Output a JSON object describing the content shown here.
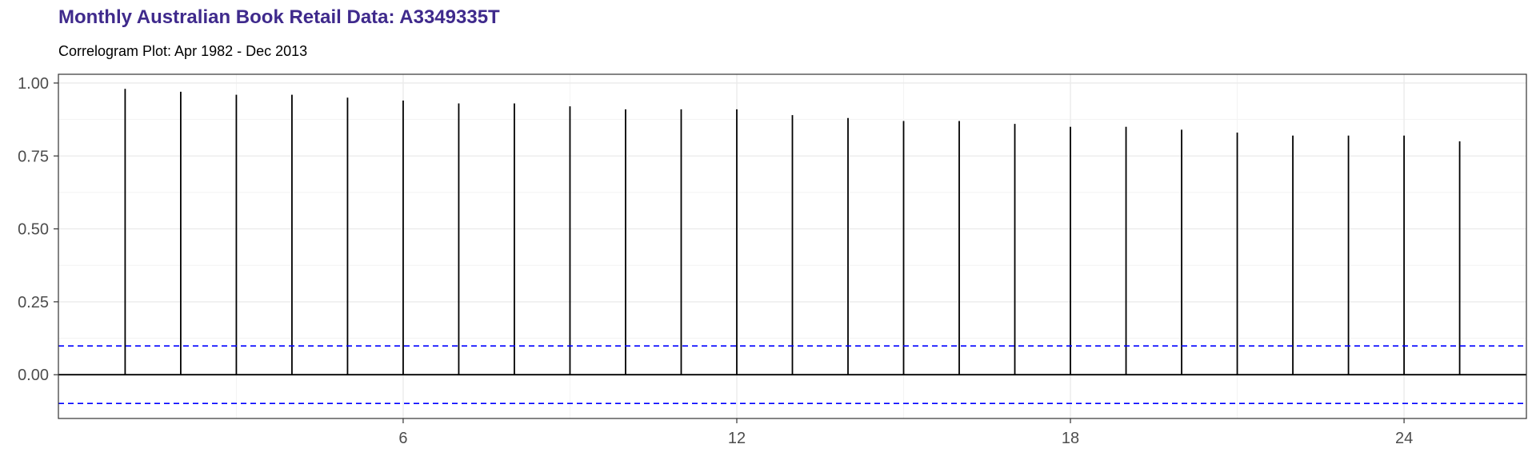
{
  "header": {
    "title": "Monthly Australian Book Retail Data: A3349335T",
    "subtitle": "Correlogram Plot: Apr 1982 - Dec 2013"
  },
  "chart_data": {
    "type": "bar",
    "title": "Monthly Australian Book Retail Data: A3349335T",
    "subtitle": "Correlogram Plot: Apr 1982 - Dec 2013",
    "xlabel": "",
    "ylabel": "",
    "x": [
      1,
      2,
      3,
      4,
      5,
      6,
      7,
      8,
      9,
      10,
      11,
      12,
      13,
      14,
      15,
      16,
      17,
      18,
      19,
      20,
      21,
      22,
      23,
      24,
      25
    ],
    "values": [
      0.98,
      0.97,
      0.96,
      0.96,
      0.95,
      0.94,
      0.93,
      0.93,
      0.92,
      0.91,
      0.91,
      0.91,
      0.89,
      0.88,
      0.87,
      0.87,
      0.86,
      0.85,
      0.85,
      0.84,
      0.83,
      0.82,
      0.82,
      0.82,
      0.8
    ],
    "xlim": [
      -0.2,
      26.2
    ],
    "ylim": [
      -0.15,
      1.03
    ],
    "x_ticks": [
      6,
      12,
      18,
      24
    ],
    "y_ticks": [
      0,
      0.25,
      0.5,
      0.75,
      1
    ],
    "x_tick_labels": [
      "6",
      "12",
      "18",
      "24"
    ],
    "y_tick_labels": [
      "0.00",
      "0.25",
      "0.50",
      "0.75",
      "1.00"
    ],
    "confidence_bounds": [
      0.0985,
      -0.0985
    ],
    "grid": true,
    "colors": {
      "stem": "#000000",
      "confidence": "#0000ff",
      "grid_major": "#ebebeb",
      "grid_minor": "#f3f3f3",
      "title": "#3f2a8c",
      "tick_text": "#4d4d4d"
    }
  }
}
